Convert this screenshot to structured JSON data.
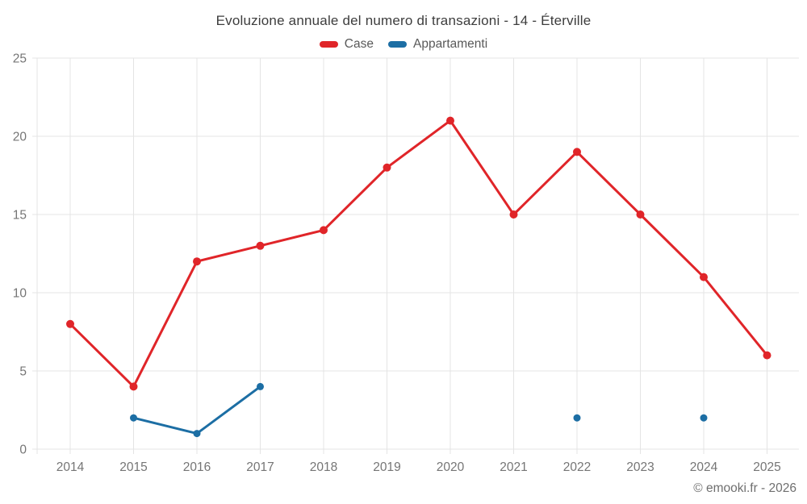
{
  "footer": {
    "copyright": "© emooki.fr - 2026"
  },
  "chart_data": {
    "type": "line",
    "title": "Evoluzione annuale del numero di transazioni - 14 - Éterville",
    "categories": [
      "2014",
      "2015",
      "2016",
      "2017",
      "2018",
      "2019",
      "2020",
      "2021",
      "2022",
      "2023",
      "2024",
      "2025"
    ],
    "series": [
      {
        "name": "Case",
        "color": "#e02529",
        "point_radius": 5,
        "values": [
          8,
          4,
          12,
          13,
          14,
          18,
          21,
          15,
          19,
          15,
          11,
          6
        ]
      },
      {
        "name": "Appartamenti",
        "color": "#1c6ea4",
        "point_radius": 4.5,
        "values": [
          null,
          2,
          1,
          4,
          null,
          null,
          null,
          null,
          2,
          null,
          2,
          null
        ]
      }
    ],
    "xlabel": "",
    "ylabel": "",
    "ylim": [
      0,
      25
    ],
    "yticks": [
      0,
      5,
      10,
      15,
      20,
      25
    ],
    "grid": true,
    "legend_position": "top",
    "grid_color": "#e4e4e4",
    "axis_text_color": "#757575"
  }
}
